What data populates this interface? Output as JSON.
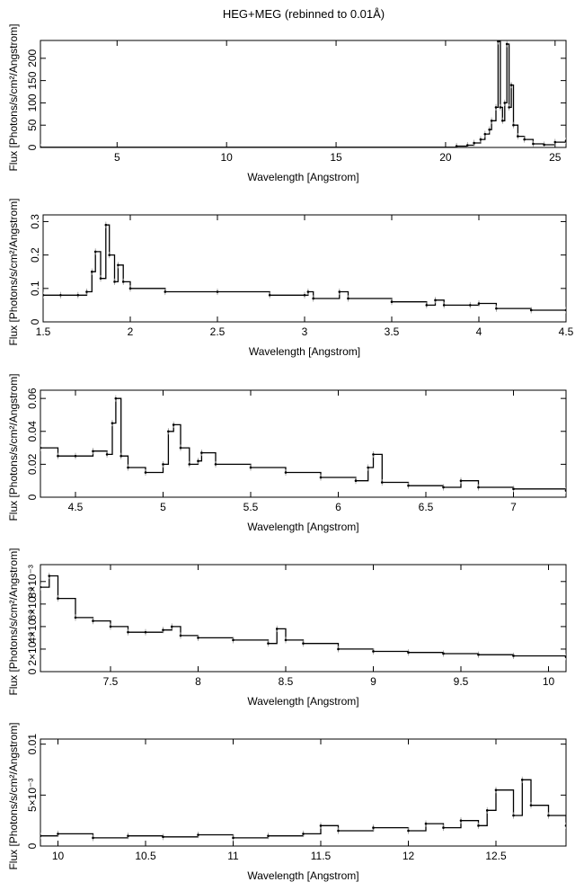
{
  "figure_title": "HEG+MEG (rebinned to 0.01Å)",
  "chart_data": [
    {
      "type": "line",
      "xlabel": "Wavelength [Angstrom]",
      "ylabel": "Flux [Photons/s/cm²/Angstrom]",
      "xlim": [
        1.5,
        25.5
      ],
      "ylim": [
        0,
        240
      ],
      "xticks": [
        5,
        10,
        15,
        20,
        25
      ],
      "xtick_labels": [
        "5",
        "10",
        "15",
        "20",
        "25"
      ],
      "yticks": [
        0,
        50,
        100,
        150,
        200
      ],
      "ytick_labels": [
        "0",
        "50",
        "100",
        "150",
        "200"
      ],
      "y_multiplier": "",
      "series": [
        {
          "x": [
            1.5,
            20.5,
            21.0,
            21.3,
            21.6,
            21.8,
            22.0,
            22.1,
            22.3,
            22.4,
            22.5,
            22.6,
            22.7,
            22.8,
            22.9,
            23.0,
            23.1,
            23.3,
            23.6,
            24.0,
            24.5,
            25.0,
            25.5
          ],
          "y": [
            0.5,
            3,
            5,
            10,
            18,
            30,
            40,
            60,
            90,
            238,
            90,
            60,
            100,
            232,
            90,
            140,
            50,
            25,
            18,
            8,
            6,
            12,
            15
          ]
        }
      ]
    },
    {
      "type": "line",
      "xlabel": "Wavelength [Angstrom]",
      "ylabel": "Flux [Photons/s/cm²/Angstrom]",
      "xlim": [
        1.5,
        4.5
      ],
      "ylim": [
        0,
        0.32
      ],
      "xticks": [
        1.5,
        2,
        2.5,
        3,
        3.5,
        4,
        4.5
      ],
      "xtick_labels": [
        "1.5",
        "2",
        "2.5",
        "3",
        "3.5",
        "4",
        "4.5"
      ],
      "yticks": [
        0,
        0.1,
        0.2,
        0.3
      ],
      "ytick_labels": [
        "0",
        "0.1",
        "0.2",
        "0.3"
      ],
      "y_multiplier": "",
      "series": [
        {
          "x": [
            1.5,
            1.6,
            1.7,
            1.75,
            1.78,
            1.8,
            1.83,
            1.86,
            1.88,
            1.91,
            1.93,
            1.96,
            2.0,
            2.2,
            2.5,
            2.8,
            3.0,
            3.02,
            3.05,
            3.2,
            3.25,
            3.5,
            3.7,
            3.75,
            3.8,
            3.95,
            4.0,
            4.1,
            4.3,
            4.5
          ],
          "y": [
            0.08,
            0.08,
            0.08,
            0.09,
            0.15,
            0.21,
            0.13,
            0.29,
            0.2,
            0.12,
            0.17,
            0.12,
            0.1,
            0.09,
            0.09,
            0.08,
            0.08,
            0.09,
            0.07,
            0.09,
            0.07,
            0.06,
            0.05,
            0.065,
            0.05,
            0.05,
            0.055,
            0.04,
            0.035,
            0.035
          ]
        }
      ]
    },
    {
      "type": "line",
      "xlabel": "Wavelength [Angstrom]",
      "ylabel": "Flux [Photons/s/cm²/Angstrom]",
      "xlim": [
        4.3,
        7.3
      ],
      "ylim": [
        0,
        0.065
      ],
      "xticks": [
        4.5,
        5,
        5.5,
        6,
        6.5,
        7
      ],
      "xtick_labels": [
        "4.5",
        "5",
        "5.5",
        "6",
        "6.5",
        "7"
      ],
      "yticks": [
        0,
        0.02,
        0.04,
        0.06
      ],
      "ytick_labels": [
        "0",
        "0.02",
        "0.04",
        "0.06"
      ],
      "y_multiplier": "",
      "series": [
        {
          "x": [
            4.3,
            4.4,
            4.5,
            4.6,
            4.68,
            4.71,
            4.73,
            4.76,
            4.8,
            4.9,
            5.0,
            5.03,
            5.06,
            5.1,
            5.15,
            5.2,
            5.22,
            5.3,
            5.5,
            5.7,
            5.9,
            6.1,
            6.17,
            6.2,
            6.25,
            6.4,
            6.6,
            6.7,
            6.8,
            7.0,
            7.3
          ],
          "y": [
            0.03,
            0.025,
            0.025,
            0.028,
            0.026,
            0.045,
            0.06,
            0.025,
            0.018,
            0.015,
            0.02,
            0.04,
            0.044,
            0.03,
            0.02,
            0.022,
            0.027,
            0.02,
            0.018,
            0.015,
            0.012,
            0.01,
            0.018,
            0.026,
            0.009,
            0.007,
            0.006,
            0.01,
            0.006,
            0.005,
            0.004
          ]
        }
      ]
    },
    {
      "type": "line",
      "xlabel": "Wavelength [Angstrom]",
      "ylabel": "Flux [Photons/s/cm²/Angstrom]",
      "xlim": [
        7.1,
        10.1
      ],
      "ylim": [
        0,
        0.0095
      ],
      "xticks": [
        7.5,
        8,
        8.5,
        9,
        9.5,
        10
      ],
      "xtick_labels": [
        "7.5",
        "8",
        "8.5",
        "9",
        "9.5",
        "10"
      ],
      "yticks": [
        0,
        0.002,
        0.004,
        0.006,
        0.008
      ],
      "ytick_labels": [
        "0",
        "2×10⁻³",
        "4×10⁻³",
        "6×10⁻³",
        "8×10⁻³"
      ],
      "y_multiplier": "",
      "series": [
        {
          "x": [
            7.1,
            7.15,
            7.2,
            7.3,
            7.4,
            7.5,
            7.6,
            7.7,
            7.8,
            7.85,
            7.9,
            8.0,
            8.2,
            8.4,
            8.45,
            8.5,
            8.6,
            8.8,
            9.0,
            9.2,
            9.4,
            9.6,
            9.8,
            10.1
          ],
          "y": [
            0.0075,
            0.0085,
            0.0065,
            0.0048,
            0.0045,
            0.004,
            0.0035,
            0.0035,
            0.0037,
            0.004,
            0.0032,
            0.003,
            0.0028,
            0.0025,
            0.0038,
            0.0028,
            0.0025,
            0.002,
            0.0018,
            0.0017,
            0.0016,
            0.0015,
            0.0014,
            0.0013
          ]
        }
      ]
    },
    {
      "type": "line",
      "xlabel": "Wavelength [Angstrom]",
      "ylabel": "Flux [Photons/s/cm²/Angstrom]",
      "xlim": [
        9.9,
        12.9
      ],
      "ylim": [
        0,
        0.0105
      ],
      "xticks": [
        10,
        10.5,
        11,
        11.5,
        12,
        12.5
      ],
      "xtick_labels": [
        "10",
        "10.5",
        "11",
        "11.5",
        "12",
        "12.5"
      ],
      "yticks": [
        0,
        0.005,
        0.01
      ],
      "ytick_labels": [
        "0",
        "5×10⁻³",
        "0.01"
      ],
      "y_multiplier": "",
      "series": [
        {
          "x": [
            9.9,
            10.0,
            10.2,
            10.4,
            10.6,
            10.8,
            11.0,
            11.2,
            11.4,
            11.5,
            11.6,
            11.8,
            12.0,
            12.1,
            12.2,
            12.3,
            12.4,
            12.45,
            12.5,
            12.6,
            12.65,
            12.7,
            12.8,
            12.9
          ],
          "y": [
            0.001,
            0.0012,
            0.0008,
            0.001,
            0.0009,
            0.0011,
            0.0008,
            0.001,
            0.0012,
            0.002,
            0.0015,
            0.0018,
            0.0015,
            0.0022,
            0.0018,
            0.0025,
            0.002,
            0.0035,
            0.0055,
            0.003,
            0.0065,
            0.004,
            0.003,
            0.002
          ]
        }
      ]
    }
  ]
}
